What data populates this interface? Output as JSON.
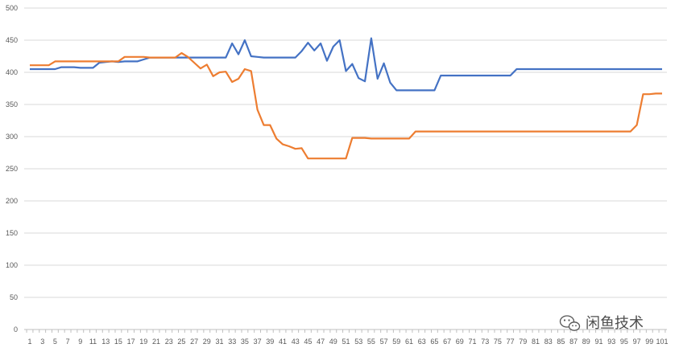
{
  "chart_data": {
    "type": "line",
    "title": "",
    "xlabel": "",
    "ylabel": "",
    "ylim": [
      0,
      500
    ],
    "y_ticks": [
      0,
      50,
      100,
      150,
      200,
      250,
      300,
      350,
      400,
      450,
      500
    ],
    "x_tick_labels": [
      "1",
      "3",
      "5",
      "7",
      "9",
      "11",
      "13",
      "15",
      "17",
      "19",
      "21",
      "23",
      "25",
      "27",
      "29",
      "31",
      "33",
      "35",
      "37",
      "39",
      "41",
      "43",
      "45",
      "47",
      "49",
      "51",
      "53",
      "55",
      "57",
      "59",
      "61",
      "63",
      "65",
      "67",
      "69",
      "71",
      "73",
      "75",
      "77",
      "79",
      "81",
      "83",
      "85",
      "87",
      "89",
      "91",
      "93",
      "95",
      "97",
      "99",
      "101"
    ],
    "grid": "horizontal",
    "legend": "none",
    "x": [
      1,
      2,
      3,
      4,
      5,
      6,
      7,
      8,
      9,
      10,
      11,
      12,
      13,
      14,
      15,
      16,
      17,
      18,
      19,
      20,
      21,
      22,
      23,
      24,
      25,
      26,
      27,
      28,
      29,
      30,
      31,
      32,
      33,
      34,
      35,
      36,
      37,
      38,
      39,
      40,
      41,
      42,
      43,
      44,
      45,
      46,
      47,
      48,
      49,
      50,
      51,
      52,
      53,
      54,
      55,
      56,
      57,
      58,
      59,
      60,
      61,
      62,
      63,
      64,
      65,
      66,
      67,
      68,
      69,
      70,
      71,
      72,
      73,
      74,
      75,
      76,
      77,
      78,
      79,
      80,
      81,
      82,
      83,
      84,
      85,
      86,
      87,
      88,
      89,
      90,
      91,
      92,
      93,
      94,
      95,
      96,
      97,
      98,
      99,
      100,
      101
    ],
    "series": [
      {
        "color": "#4472C4",
        "values": [
          405,
          405,
          405,
          405,
          405,
          408,
          408,
          408,
          407,
          407,
          407,
          415,
          416,
          417,
          416,
          417,
          417,
          417,
          420,
          423,
          423,
          423,
          423,
          423,
          423,
          423,
          423,
          423,
          423,
          423,
          423,
          423,
          445,
          428,
          450,
          425,
          424,
          423,
          423,
          423,
          423,
          423,
          423,
          433,
          446,
          434,
          445,
          418,
          440,
          450,
          402,
          413,
          391,
          386,
          453,
          390,
          414,
          384,
          372,
          372,
          372,
          372,
          372,
          372,
          372,
          395,
          395,
          395,
          395,
          395,
          395,
          395,
          395,
          395,
          395,
          395,
          395,
          405,
          405,
          405,
          405,
          405,
          405,
          405,
          405,
          405,
          405,
          405,
          405,
          405,
          405,
          405,
          405,
          405,
          405,
          405,
          405,
          405,
          405,
          405,
          405
        ]
      },
      {
        "color": "#ED7D31",
        "values": [
          411,
          411,
          411,
          411,
          417,
          417,
          417,
          417,
          417,
          417,
          417,
          417,
          417,
          417,
          417,
          424,
          424,
          424,
          424,
          423,
          423,
          423,
          423,
          423,
          430,
          424,
          415,
          406,
          412,
          394,
          400,
          401,
          385,
          390,
          405,
          402,
          342,
          318,
          318,
          297,
          288,
          285,
          281,
          282,
          266,
          266,
          266,
          266,
          266,
          266,
          266,
          298,
          298,
          298,
          297,
          297,
          297,
          297,
          297,
          297,
          297,
          308,
          308,
          308,
          308,
          308,
          308,
          308,
          308,
          308,
          308,
          308,
          308,
          308,
          308,
          308,
          308,
          308,
          308,
          308,
          308,
          308,
          308,
          308,
          308,
          308,
          308,
          308,
          308,
          308,
          308,
          308,
          308,
          308,
          308,
          308,
          318,
          366,
          366,
          367,
          367
        ]
      }
    ]
  },
  "watermark": {
    "text": "闲鱼技术",
    "icon": "wechat-icon"
  },
  "colors": {
    "grid": "#D9D9D9",
    "axis": "#BFBFBF",
    "tick_text": "#595959"
  }
}
